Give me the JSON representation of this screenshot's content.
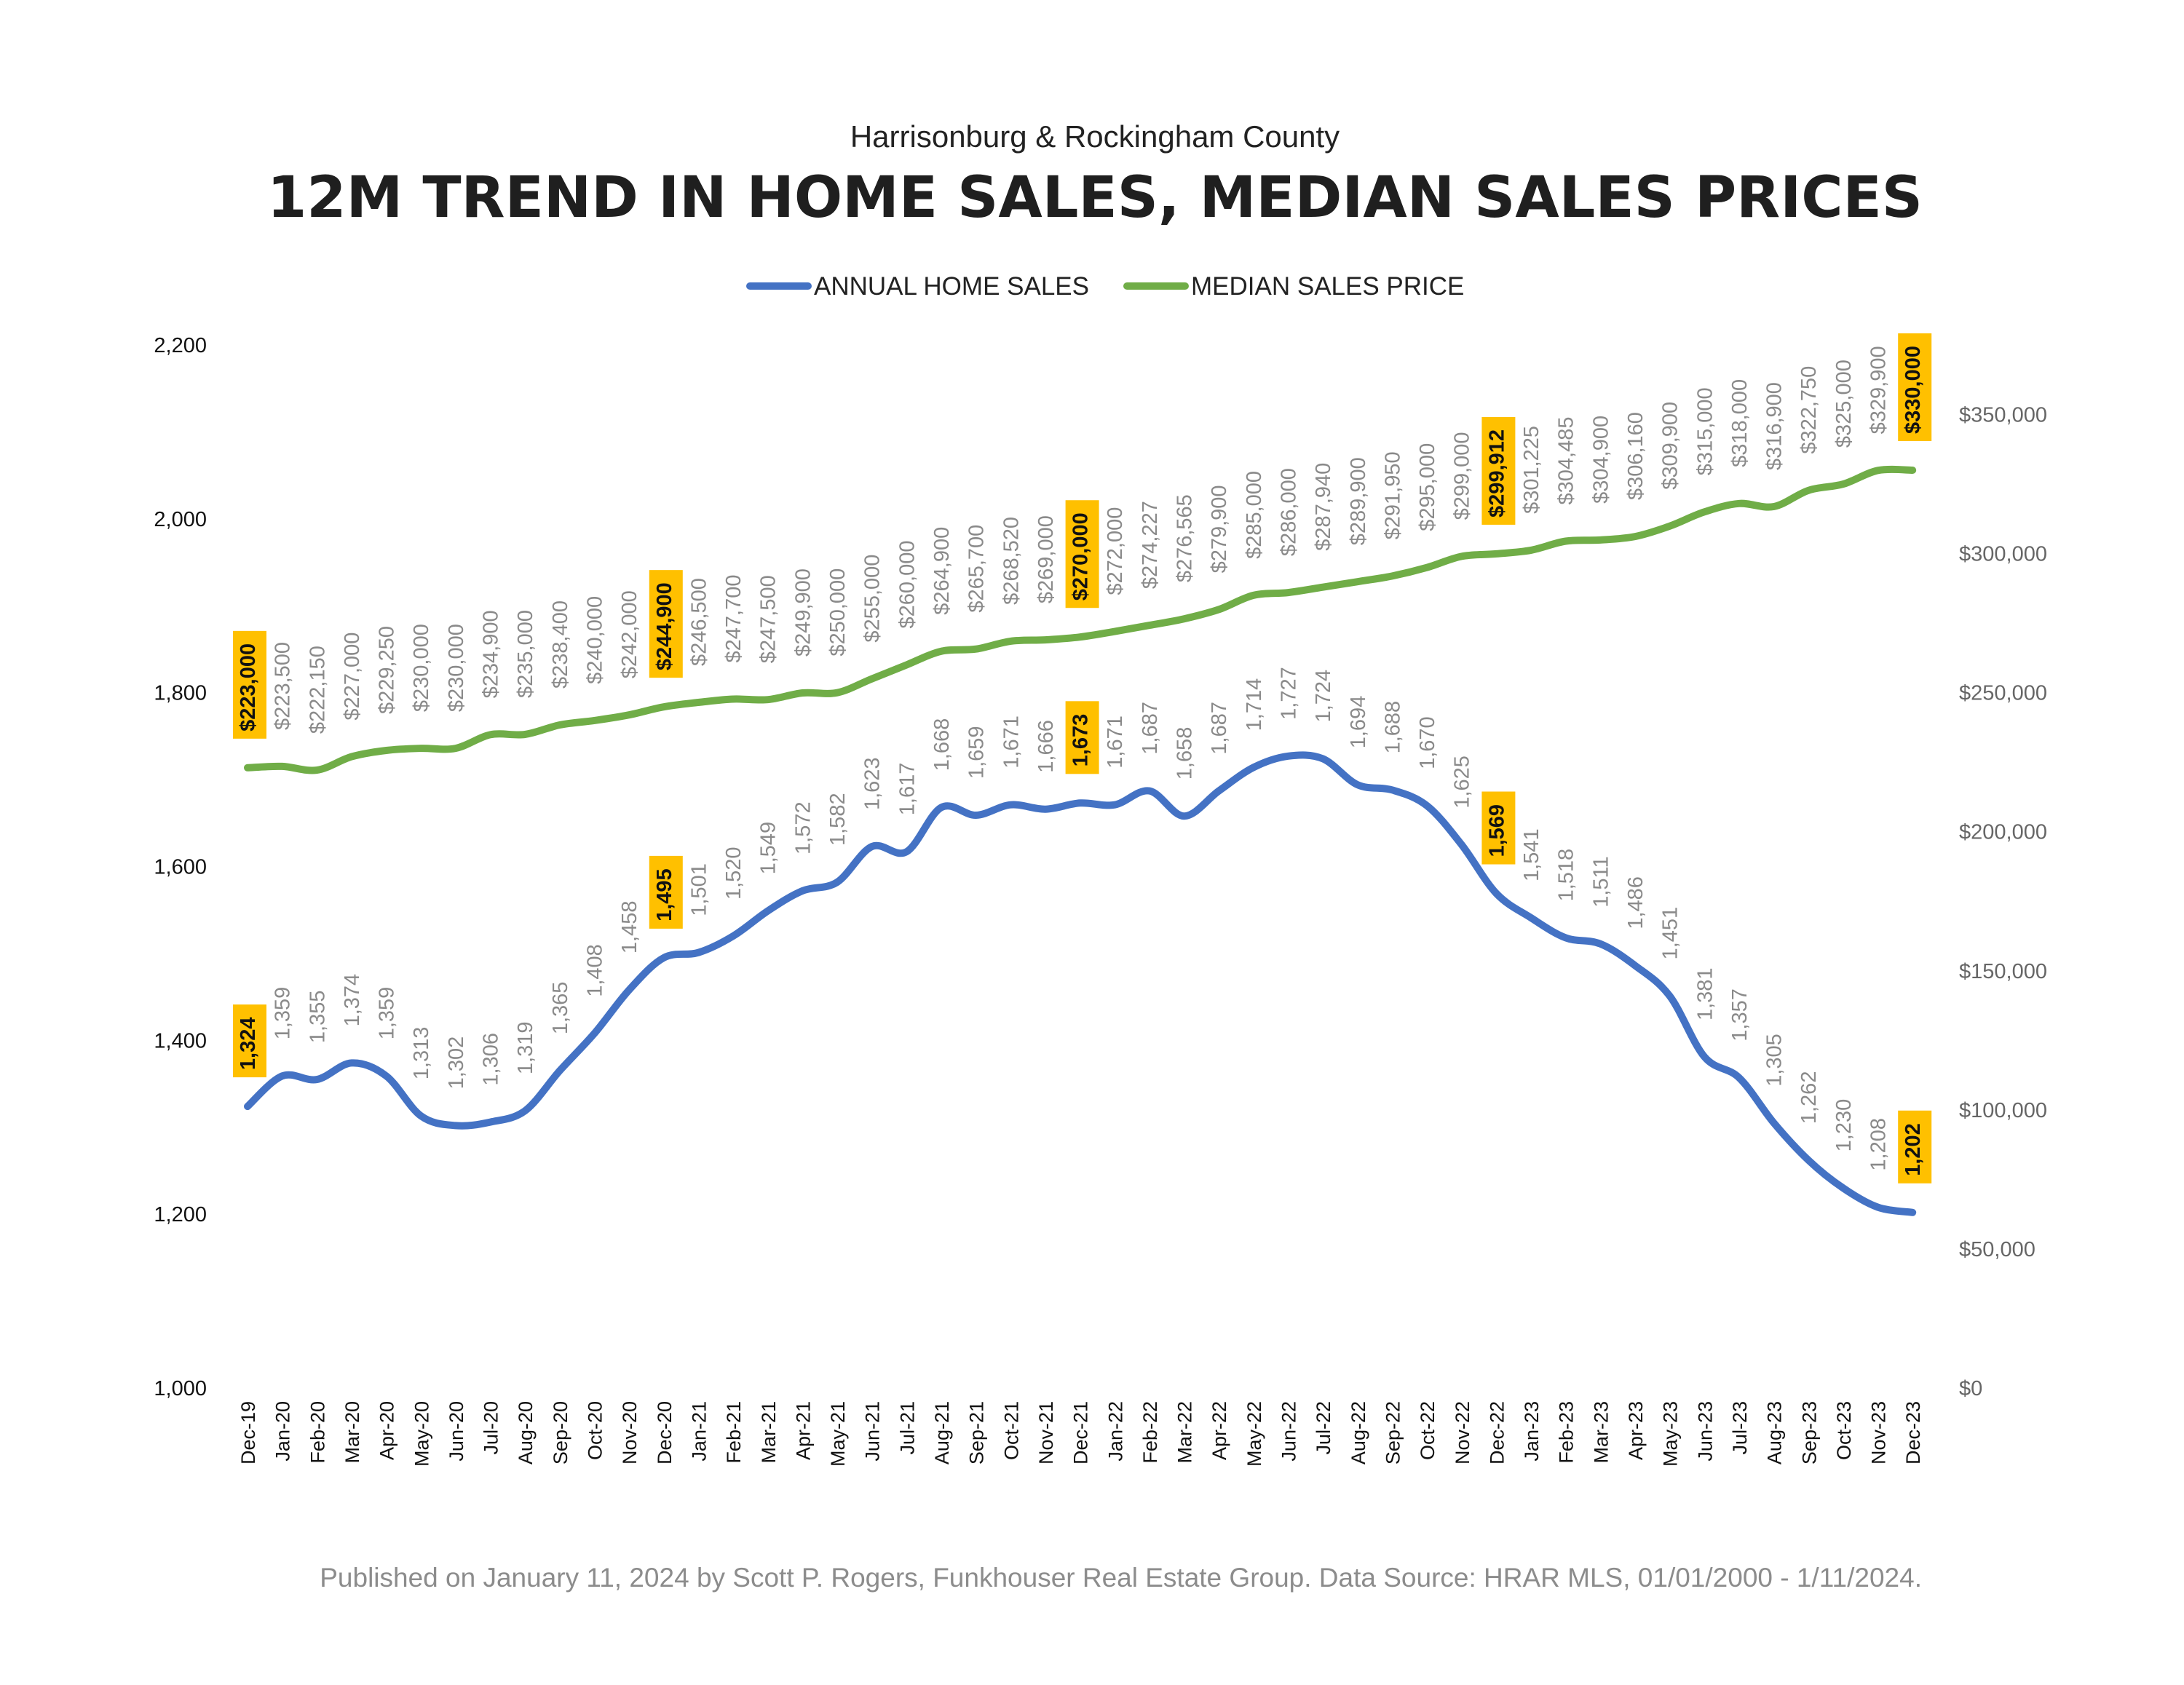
{
  "header": {
    "subtitle": "Harrisonburg & Rockingham County",
    "title": "12M TREND IN HOME SALES, MEDIAN SALES PRICES"
  },
  "legend": [
    {
      "label": "ANNUAL HOME SALES",
      "color": "#4472C4"
    },
    {
      "label": "MEDIAN SALES PRICE",
      "color": "#70AD47"
    }
  ],
  "footer": {
    "text": "Published on January 11, 2024 by Scott P. Rogers, Funkhouser Real Estate Group. Data Source: HRAR MLS, 01/01/2000 - 1/11/2024."
  },
  "chart_data": {
    "type": "line",
    "title": "12M TREND IN HOME SALES, MEDIAN SALES PRICES",
    "subtitle": "Harrisonburg & Rockingham County",
    "categories": [
      "Dec-19",
      "Jan-20",
      "Feb-20",
      "Mar-20",
      "Apr-20",
      "May-20",
      "Jun-20",
      "Jul-20",
      "Aug-20",
      "Sep-20",
      "Oct-20",
      "Nov-20",
      "Dec-20",
      "Jan-21",
      "Feb-21",
      "Mar-21",
      "Apr-21",
      "May-21",
      "Jun-21",
      "Jul-21",
      "Aug-21",
      "Sep-21",
      "Oct-21",
      "Nov-21",
      "Dec-21",
      "Jan-22",
      "Feb-22",
      "Mar-22",
      "Apr-22",
      "May-22",
      "Jun-22",
      "Jul-22",
      "Aug-22",
      "Sep-22",
      "Oct-22",
      "Nov-22",
      "Dec-22",
      "Jan-23",
      "Feb-23",
      "Mar-23",
      "Apr-23",
      "May-23",
      "Jun-23",
      "Jul-23",
      "Aug-23",
      "Sep-23",
      "Oct-23",
      "Nov-23",
      "Dec-23"
    ],
    "left_axis": {
      "ylim": [
        1000,
        2200
      ],
      "ticks": [
        "1,000",
        "1,200",
        "1,400",
        "1,600",
        "1,800",
        "2,000",
        "2,200"
      ]
    },
    "right_axis": {
      "ylim": [
        0,
        375000
      ],
      "ticks": [
        "$0",
        "$50,000",
        "$100,000",
        "$150,000",
        "$200,000",
        "$250,000",
        "$300,000",
        "$350,000"
      ]
    },
    "legend_position": "top-center",
    "grid": false,
    "series": [
      {
        "name": "ANNUAL HOME SALES",
        "axis": "left",
        "color": "#4472C4",
        "values": [
          1324,
          1359,
          1355,
          1374,
          1359,
          1313,
          1302,
          1306,
          1319,
          1365,
          1408,
          1458,
          1495,
          1501,
          1520,
          1549,
          1572,
          1582,
          1623,
          1617,
          1668,
          1659,
          1671,
          1666,
          1673,
          1671,
          1687,
          1658,
          1687,
          1714,
          1727,
          1724,
          1694,
          1688,
          1670,
          1625,
          1569,
          1541,
          1518,
          1511,
          1486,
          1451,
          1381,
          1357,
          1305,
          1262,
          1230,
          1208,
          1202
        ],
        "labels": [
          "1,324",
          "1,359",
          "1,355",
          "1,374",
          "1,359",
          "1,313",
          "1,302",
          "1,306",
          "1,319",
          "1,365",
          "1,408",
          "1,458",
          "1,495",
          "1,501",
          "1,520",
          "1,549",
          "1,572",
          "1,582",
          "1,623",
          "1,617",
          "1,668",
          "1,659",
          "1,671",
          "1,666",
          "1,673",
          "1,671",
          "1,687",
          "1,658",
          "1,687",
          "1,714",
          "1,727",
          "1,724",
          "1,694",
          "1,688",
          "1,670",
          "1,625",
          "1,569",
          "1,541",
          "1,518",
          "1,511",
          "1,486",
          "1,451",
          "1,381",
          "1,357",
          "1,305",
          "1,262",
          "1,230",
          "1,208",
          "1,202"
        ],
        "highlighted": [
          0,
          12,
          24,
          36,
          48
        ]
      },
      {
        "name": "MEDIAN SALES PRICE",
        "axis": "right",
        "color": "#70AD47",
        "values": [
          223000,
          223500,
          222150,
          227000,
          229250,
          230000,
          230000,
          234900,
          235000,
          238400,
          240000,
          242000,
          244900,
          246500,
          247700,
          247500,
          249900,
          250000,
          255000,
          260000,
          264900,
          265700,
          268520,
          269000,
          270000,
          272000,
          274227,
          276565,
          279900,
          285000,
          286000,
          287940,
          289900,
          291950,
          295000,
          299000,
          299912,
          301225,
          304485,
          304900,
          306160,
          309900,
          315000,
          318000,
          316900,
          322750,
          325000,
          329900,
          330000
        ],
        "labels": [
          "$223,000",
          "$223,500",
          "$222,150",
          "$227,000",
          "$229,250",
          "$230,000",
          "$230,000",
          "$234,900",
          "$235,000",
          "$238,400",
          "$240,000",
          "$242,000",
          "$244,900",
          "$246,500",
          "$247,700",
          "$247,500",
          "$249,900",
          "$250,000",
          "$255,000",
          "$260,000",
          "$264,900",
          "$265,700",
          "$268,520",
          "$269,000",
          "$270,000",
          "$272,000",
          "$274,227",
          "$276,565",
          "$279,900",
          "$285,000",
          "$286,000",
          "$287,940",
          "$289,900",
          "$291,950",
          "$295,000",
          "$299,000",
          "$299,912",
          "$301,225",
          "$304,485",
          "$304,900",
          "$306,160",
          "$309,900",
          "$315,000",
          "$318,000",
          "$316,900",
          "$322,750",
          "$325,000",
          "$329,900",
          "$330,000"
        ],
        "highlighted": [
          0,
          12,
          24,
          36,
          48
        ]
      }
    ],
    "highlight_color": "#FFC000"
  }
}
